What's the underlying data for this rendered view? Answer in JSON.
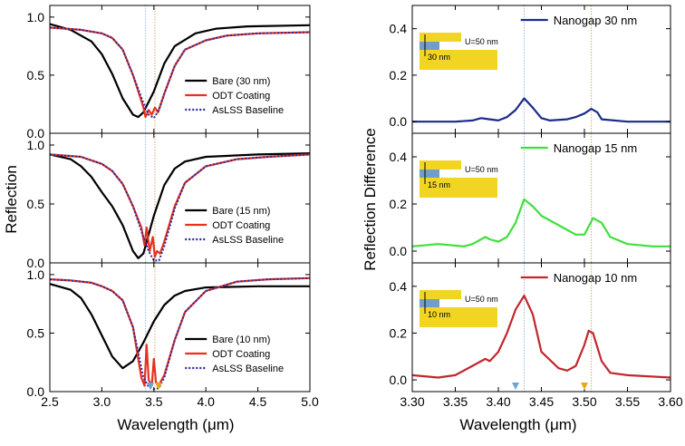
{
  "left_ylabel": "Reflection",
  "left_xlabel": "Wavelength (μm)",
  "right_ylabel": "Reflection Difference",
  "right_xlabel": "Wavelength (μm)",
  "chart_data": [
    {
      "type": "line",
      "position": "left-top",
      "xlim": [
        2.5,
        5.0
      ],
      "ylim": [
        0.0,
        1.1
      ],
      "xticks": [
        "2.5",
        "3.0",
        "3.5",
        "4.0",
        "4.5",
        "5.0"
      ],
      "yticks": [
        "0.0",
        "0.5",
        "1.0"
      ],
      "legend_position": "lower-right",
      "vlines": [
        3.42,
        3.51
      ],
      "series": [
        {
          "name": "Bare (30 nm)",
          "color": "#000000",
          "style": "solid",
          "x": [
            2.5,
            2.7,
            2.9,
            3.0,
            3.1,
            3.2,
            3.3,
            3.35,
            3.4,
            3.5,
            3.6,
            3.7,
            3.9,
            4.1,
            4.4,
            5.0
          ],
          "y": [
            0.94,
            0.89,
            0.79,
            0.68,
            0.51,
            0.3,
            0.16,
            0.14,
            0.18,
            0.36,
            0.6,
            0.75,
            0.86,
            0.9,
            0.92,
            0.93
          ]
        },
        {
          "name": "ODT Coating",
          "color": "#e8301f",
          "style": "solid",
          "x": [
            2.5,
            2.8,
            3.0,
            3.1,
            3.2,
            3.3,
            3.38,
            3.4,
            3.42,
            3.45,
            3.48,
            3.51,
            3.54,
            3.6,
            3.7,
            3.8,
            4.0,
            4.2,
            4.5,
            5.0
          ],
          "y": [
            0.91,
            0.89,
            0.86,
            0.82,
            0.72,
            0.5,
            0.28,
            0.22,
            0.14,
            0.2,
            0.16,
            0.22,
            0.18,
            0.34,
            0.58,
            0.72,
            0.8,
            0.84,
            0.86,
            0.87
          ]
        },
        {
          "name": "AsLSS Baseline",
          "color": "#2a2aa0",
          "style": "dotted",
          "x": [
            2.5,
            2.8,
            3.0,
            3.1,
            3.2,
            3.3,
            3.4,
            3.45,
            3.5,
            3.55,
            3.6,
            3.7,
            3.8,
            4.0,
            4.2,
            4.5,
            5.0
          ],
          "y": [
            0.91,
            0.89,
            0.86,
            0.82,
            0.72,
            0.5,
            0.26,
            0.16,
            0.13,
            0.2,
            0.34,
            0.58,
            0.72,
            0.8,
            0.84,
            0.86,
            0.87
          ]
        }
      ]
    },
    {
      "type": "line",
      "position": "left-middle",
      "xlim": [
        2.5,
        5.0
      ],
      "ylim": [
        0.0,
        1.1
      ],
      "xticks": [
        "2.5",
        "3.0",
        "3.5",
        "4.0",
        "4.5",
        "5.0"
      ],
      "yticks": [
        "0.0",
        "0.5",
        "1.0"
      ],
      "legend_position": "lower-right",
      "vlines": [
        3.42,
        3.51
      ],
      "series": [
        {
          "name": "Bare (15 nm)",
          "color": "#000000",
          "style": "solid",
          "x": [
            2.5,
            2.7,
            2.8,
            2.9,
            3.0,
            3.1,
            3.2,
            3.3,
            3.35,
            3.4,
            3.5,
            3.6,
            3.7,
            3.8,
            4.0,
            4.5,
            5.0
          ],
          "y": [
            0.92,
            0.88,
            0.82,
            0.73,
            0.6,
            0.48,
            0.32,
            0.1,
            0.04,
            0.08,
            0.4,
            0.66,
            0.8,
            0.86,
            0.9,
            0.92,
            0.93
          ]
        },
        {
          "name": "ODT Coating",
          "color": "#e8301f",
          "style": "solid",
          "x": [
            2.5,
            2.8,
            3.0,
            3.1,
            3.2,
            3.3,
            3.38,
            3.41,
            3.43,
            3.46,
            3.49,
            3.51,
            3.53,
            3.56,
            3.6,
            3.7,
            3.8,
            4.0,
            4.3,
            4.6,
            5.0
          ],
          "y": [
            0.92,
            0.9,
            0.84,
            0.78,
            0.67,
            0.48,
            0.3,
            0.15,
            0.3,
            0.1,
            0.22,
            0.05,
            0.1,
            0.08,
            0.18,
            0.48,
            0.68,
            0.82,
            0.88,
            0.9,
            0.92
          ]
        },
        {
          "name": "AsLSS Baseline",
          "color": "#2a2aa0",
          "style": "dotted",
          "x": [
            2.5,
            2.8,
            3.0,
            3.1,
            3.2,
            3.3,
            3.4,
            3.45,
            3.5,
            3.55,
            3.6,
            3.7,
            3.8,
            4.0,
            4.3,
            4.6,
            5.0
          ],
          "y": [
            0.92,
            0.9,
            0.84,
            0.78,
            0.67,
            0.48,
            0.22,
            0.1,
            0.02,
            0.02,
            0.14,
            0.46,
            0.68,
            0.82,
            0.88,
            0.9,
            0.92
          ]
        }
      ]
    },
    {
      "type": "line",
      "position": "left-bottom",
      "xlim": [
        2.5,
        5.0
      ],
      "ylim": [
        0.0,
        1.1
      ],
      "xticks": [
        "2.5",
        "3.0",
        "3.5",
        "4.0",
        "4.5",
        "5.0"
      ],
      "yticks": [
        "0.0",
        "0.5",
        "1.0"
      ],
      "legend_position": "lower-right",
      "vlines": [
        3.42,
        3.51
      ],
      "series": [
        {
          "name": "Bare (10 nm)",
          "color": "#000000",
          "style": "solid",
          "x": [
            2.5,
            2.7,
            2.8,
            2.9,
            3.0,
            3.1,
            3.2,
            3.3,
            3.4,
            3.5,
            3.6,
            3.7,
            3.8,
            4.0,
            4.5,
            5.0
          ],
          "y": [
            0.92,
            0.87,
            0.8,
            0.66,
            0.48,
            0.3,
            0.2,
            0.26,
            0.42,
            0.6,
            0.74,
            0.82,
            0.86,
            0.89,
            0.9,
            0.9
          ]
        },
        {
          "name": "ODT Coating",
          "color": "#e8301f",
          "style": "solid",
          "x": [
            2.5,
            2.7,
            2.9,
            3.0,
            3.1,
            3.2,
            3.3,
            3.38,
            3.41,
            3.43,
            3.45,
            3.48,
            3.5,
            3.52,
            3.55,
            3.6,
            3.7,
            3.8,
            4.0,
            4.3,
            4.6,
            5.0
          ],
          "y": [
            0.96,
            0.95,
            0.93,
            0.9,
            0.86,
            0.78,
            0.55,
            0.12,
            0.05,
            0.4,
            0.1,
            0.05,
            0.28,
            0.08,
            0.06,
            0.14,
            0.44,
            0.68,
            0.86,
            0.94,
            0.96,
            0.97
          ]
        },
        {
          "name": "AsLSS Baseline",
          "color": "#2a2aa0",
          "style": "dotted",
          "x": [
            2.5,
            2.7,
            2.9,
            3.0,
            3.1,
            3.2,
            3.3,
            3.4,
            3.45,
            3.5,
            3.55,
            3.6,
            3.7,
            3.8,
            4.0,
            4.3,
            4.6,
            5.0
          ],
          "y": [
            0.96,
            0.95,
            0.93,
            0.9,
            0.86,
            0.78,
            0.55,
            0.12,
            0.04,
            0.02,
            0.03,
            0.12,
            0.44,
            0.68,
            0.86,
            0.94,
            0.96,
            0.97
          ]
        }
      ]
    },
    {
      "type": "line",
      "position": "right-top",
      "xlim": [
        3.3,
        3.6
      ],
      "ylim": [
        -0.05,
        0.5
      ],
      "xticks": [
        "3.30",
        "3.35",
        "3.40",
        "3.45",
        "3.50",
        "3.55",
        "3.60"
      ],
      "yticks": [
        "0.0",
        "0.2",
        "0.4"
      ],
      "legend_position": "top-right",
      "vlines": [
        3.43,
        3.508
      ],
      "inset": {
        "gap_label": "30 nm",
        "u_label": "U=50 nm"
      },
      "series": [
        {
          "name": "Nanogap 30 nm",
          "color": "#1a2a8a",
          "style": "solid",
          "x": [
            3.3,
            3.35,
            3.37,
            3.38,
            3.39,
            3.4,
            3.41,
            3.42,
            3.43,
            3.44,
            3.45,
            3.46,
            3.48,
            3.49,
            3.5,
            3.508,
            3.515,
            3.52,
            3.55,
            3.6
          ],
          "y": [
            0.0,
            0.0,
            0.005,
            0.015,
            0.01,
            0.005,
            0.02,
            0.05,
            0.1,
            0.06,
            0.015,
            0.005,
            0.01,
            0.02,
            0.035,
            0.055,
            0.04,
            0.01,
            0.0,
            0.0
          ]
        }
      ]
    },
    {
      "type": "line",
      "position": "right-middle",
      "xlim": [
        3.3,
        3.6
      ],
      "ylim": [
        -0.05,
        0.5
      ],
      "xticks": [
        "3.30",
        "3.35",
        "3.40",
        "3.45",
        "3.50",
        "3.55",
        "3.60"
      ],
      "yticks": [
        "0.0",
        "0.2",
        "0.4"
      ],
      "legend_position": "top-right",
      "vlines": [
        3.43,
        3.508
      ],
      "inset": {
        "gap_label": "15 nm",
        "u_label": "U=50 nm"
      },
      "series": [
        {
          "name": "Nanogap 15 nm",
          "color": "#3ee03e",
          "style": "solid",
          "x": [
            3.3,
            3.33,
            3.36,
            3.37,
            3.38,
            3.385,
            3.39,
            3.4,
            3.41,
            3.42,
            3.43,
            3.44,
            3.45,
            3.47,
            3.48,
            3.49,
            3.5,
            3.51,
            3.52,
            3.53,
            3.55,
            3.58,
            3.6
          ],
          "y": [
            0.02,
            0.03,
            0.02,
            0.03,
            0.05,
            0.06,
            0.05,
            0.04,
            0.06,
            0.12,
            0.22,
            0.19,
            0.15,
            0.11,
            0.09,
            0.07,
            0.07,
            0.14,
            0.12,
            0.06,
            0.03,
            0.02,
            0.02
          ]
        }
      ]
    },
    {
      "type": "line",
      "position": "right-bottom",
      "xlim": [
        3.3,
        3.6
      ],
      "ylim": [
        -0.05,
        0.5
      ],
      "xticks": [
        "3.30",
        "3.35",
        "3.40",
        "3.45",
        "3.50",
        "3.55",
        "3.60"
      ],
      "yticks": [
        "0.0",
        "0.2",
        "0.4"
      ],
      "legend_position": "top-right",
      "vlines": [
        3.43,
        3.508
      ],
      "inset": {
        "gap_label": "10 nm",
        "u_label": "U=50 nm"
      },
      "series": [
        {
          "name": "Nanogap 10 nm",
          "color": "#c1272d",
          "style": "solid",
          "x": [
            3.3,
            3.33,
            3.35,
            3.37,
            3.38,
            3.385,
            3.39,
            3.4,
            3.41,
            3.42,
            3.43,
            3.44,
            3.45,
            3.47,
            3.48,
            3.49,
            3.5,
            3.505,
            3.51,
            3.52,
            3.53,
            3.55,
            3.6
          ],
          "y": [
            0.02,
            0.01,
            0.02,
            0.06,
            0.08,
            0.09,
            0.08,
            0.12,
            0.2,
            0.3,
            0.36,
            0.28,
            0.12,
            0.05,
            0.04,
            0.06,
            0.15,
            0.21,
            0.2,
            0.08,
            0.03,
            0.02,
            0.01
          ]
        }
      ]
    }
  ]
}
